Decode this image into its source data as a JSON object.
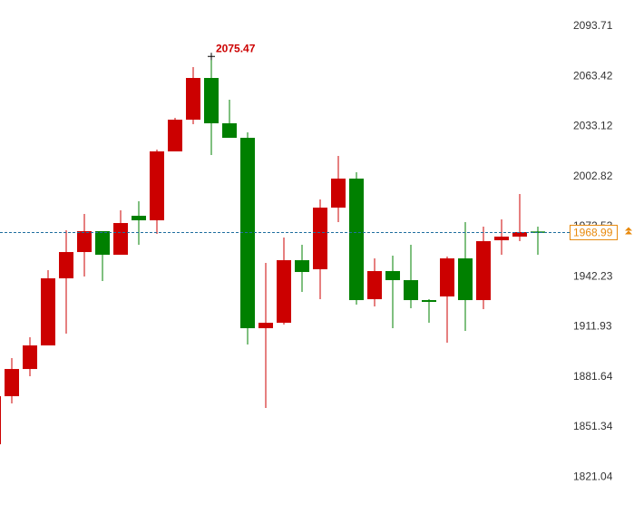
{
  "chart_data": {
    "type": "candlestick",
    "open": [
      1840.93,
      1869.99,
      1886.44,
      1900.7,
      1941.27,
      1957.17,
      1969.79,
      1955.53,
      1979.11,
      1976.37,
      2018.04,
      2037.23,
      2062.45,
      2035.04,
      2026.26,
      1911.11,
      1914.4,
      1952.24,
      1946.76,
      1984.04,
      2001.59,
      1928.66,
      1945.66,
      1940.18,
      1928.11,
      1930.31,
      1953.34,
      1928.11,
      1964.3,
      1966.5,
      1969.6
    ],
    "high": [
      1876.57,
      1893.02,
      1905.63,
      1946.21,
      1970.33,
      1980.2,
      1969.79,
      1982.4,
      1987.88,
      2019.14,
      2038.33,
      2069.03,
      2075.47,
      2049.29,
      2029.55,
      1950.59,
      1965.95,
      1961.56,
      1988.98,
      2015.3,
      2005.43,
      1953.34,
      1954.98,
      1961.56,
      1928.66,
      1954.43,
      1975.27,
      1972.53,
      1976.91,
      1992.27,
      1972.53
    ],
    "low": [
      1840.93,
      1865.6,
      1882.05,
      1900.7,
      1907.82,
      1942.37,
      1939.63,
      1955.53,
      1961.56,
      1968.14,
      2018.04,
      2034.49,
      2015.85,
      2026.26,
      1901.24,
      1862.86,
      1913.31,
      1933.05,
      1928.66,
      1975.27,
      1925.37,
      1924.27,
      1911.11,
      1923.18,
      1914.4,
      1902.34,
      1909.47,
      1922.63,
      1955.53,
      1963.75,
      1955.53
    ],
    "close": [
      1869.99,
      1886.44,
      1900.7,
      1941.27,
      1957.17,
      1969.79,
      1955.53,
      1974.72,
      1976.37,
      2018.04,
      2037.23,
      2062.45,
      2035.04,
      2026.26,
      1911.11,
      1914.4,
      1952.24,
      1945.11,
      1984.04,
      2001.59,
      1928.11,
      1945.66,
      1940.18,
      1928.11,
      1927.02,
      1953.34,
      1928.11,
      1963.75,
      1966.5,
      1969.24,
      1968.99
    ],
    "up_color": "#cc0000",
    "down_color": "#008000",
    "ylim": [
      1792.7,
      2109.6
    ],
    "yticks": [
      2093.71,
      2063.42,
      2033.12,
      2002.82,
      1972.53,
      1942.23,
      1911.93,
      1881.64,
      1851.34,
      1821.04
    ],
    "max_label": {
      "index": 12,
      "value": 2075.47
    },
    "last_price": 1968.99,
    "last_price_color": "#e8890c",
    "price_line_color": "#1f6f9f"
  }
}
